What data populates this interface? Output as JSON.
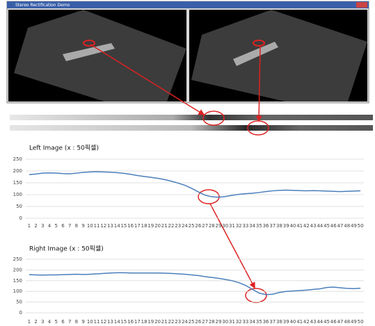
{
  "window_title": "Stereo Rectification Demo",
  "chart_data": [
    {
      "type": "line",
      "title": "Left Image (x : 50픽셀)",
      "categories": [
        1,
        2,
        3,
        4,
        5,
        6,
        7,
        8,
        9,
        10,
        11,
        12,
        13,
        14,
        15,
        16,
        17,
        18,
        19,
        20,
        21,
        22,
        23,
        24,
        25,
        26,
        27,
        28,
        29,
        30,
        31,
        32,
        33,
        34,
        35,
        36,
        37,
        38,
        39,
        40,
        41,
        42,
        43,
        44,
        45,
        46,
        47,
        48,
        49,
        50
      ],
      "values": [
        185,
        187,
        191,
        192,
        191,
        189,
        188,
        191,
        194,
        196,
        197,
        196,
        195,
        193,
        190,
        186,
        181,
        177,
        173,
        169,
        164,
        157,
        149,
        140,
        127,
        112,
        98,
        91,
        89,
        92,
        97,
        101,
        104,
        106,
        109,
        113,
        116,
        118,
        119,
        118,
        117,
        116,
        117,
        116,
        115,
        114,
        113,
        114,
        115,
        116
      ],
      "color": "#4a7ebb",
      "ylim": [
        0,
        250
      ],
      "yticks": [
        0,
        50,
        100,
        150,
        200,
        250
      ],
      "grid": true
    },
    {
      "type": "line",
      "title": "Right Image (x : 50픽셀)",
      "categories": [
        1,
        2,
        3,
        4,
        5,
        6,
        7,
        8,
        9,
        10,
        11,
        12,
        13,
        14,
        15,
        16,
        17,
        18,
        19,
        20,
        21,
        22,
        23,
        24,
        25,
        26,
        27,
        28,
        29,
        30,
        31,
        32,
        33,
        34,
        35,
        36,
        37,
        38,
        39,
        40,
        41,
        42,
        43,
        44,
        45,
        46,
        47,
        48,
        49,
        50
      ],
      "values": [
        178,
        177,
        176,
        177,
        177,
        178,
        179,
        180,
        179,
        180,
        182,
        184,
        186,
        187,
        187,
        186,
        186,
        186,
        186,
        186,
        185,
        184,
        182,
        180,
        177,
        174,
        169,
        165,
        161,
        156,
        150,
        141,
        128,
        110,
        92,
        85,
        87,
        95,
        100,
        102,
        104,
        106,
        109,
        112,
        118,
        120,
        117,
        114,
        113,
        115
      ],
      "color": "#4a7ebb",
      "ylim": [
        0,
        250
      ],
      "yticks": [
        0,
        50,
        100,
        150,
        200,
        250
      ],
      "grid": true
    }
  ]
}
